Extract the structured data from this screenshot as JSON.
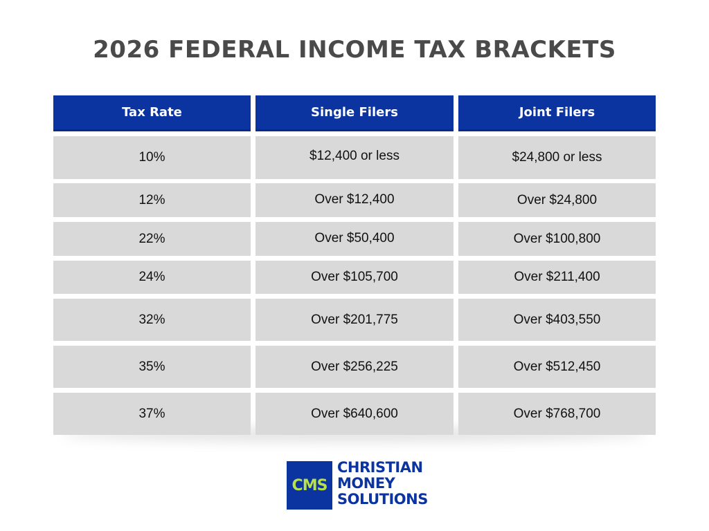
{
  "title": "2026 FEDERAL INCOME TAX BRACKETS",
  "table": {
    "headers": [
      "Tax Rate",
      "Single Filers",
      "Joint Filers"
    ],
    "rows": [
      [
        "10%",
        "$12,400 or less",
        "$24,800 or less"
      ],
      [
        "12%",
        "Over $12,400",
        "Over $24,800"
      ],
      [
        "22%",
        "Over $50,400",
        "Over $100,800"
      ],
      [
        "24%",
        "Over $105,700",
        "Over $211,400"
      ],
      [
        "32%",
        "Over $201,775",
        "Over $403,550"
      ],
      [
        "35%",
        "Over $256,225",
        "Over $512,450"
      ],
      [
        "37%",
        "Over $640,600",
        "Over $768,700"
      ]
    ]
  },
  "logo": {
    "mark": "CMS",
    "line1": "CHRISTIAN",
    "line2": "MONEY",
    "line3": "SOLUTIONS"
  },
  "colors": {
    "header_bg": "#0b34a0",
    "cell_bg": "#d9d9d9",
    "title_text": "#4a4a4a",
    "logo_accent": "#b7e04a"
  }
}
